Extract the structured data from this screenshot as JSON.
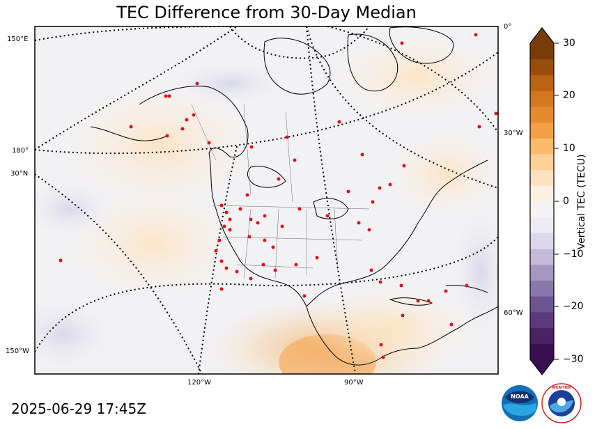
{
  "title": "TEC Difference from 30-Day Median",
  "timestamp": "2025-06-29 17:45Z",
  "colorbar": {
    "label": "Vertical TEC (TECU)",
    "ticks": [
      "30",
      "20",
      "10",
      "0",
      "−10",
      "−20",
      "−30"
    ],
    "colors_low_to_high": [
      "#3b0f50",
      "#4a2364",
      "#5a3a7a",
      "#6b5591",
      "#8877aa",
      "#a597c2",
      "#c2bad8",
      "#dcd8ea",
      "#eceaf3",
      "#f4f3f2",
      "#fbf0e2",
      "#fde2c0",
      "#fcd097",
      "#f9ba6b",
      "#f2a046",
      "#e58b2c",
      "#d4761d",
      "#bb6213",
      "#9a4e0c",
      "#7a3c06"
    ],
    "range": [
      -30,
      30
    ]
  },
  "graticule_labels": {
    "left": [
      "150°E",
      "180°",
      "30°N",
      "150°W"
    ],
    "right": [
      "0°",
      "30°W",
      "60°W"
    ],
    "bottom": [
      "120°W",
      "90°W"
    ]
  },
  "logos": {
    "noaa": "NOAA",
    "nws": "NATIONAL WEATHER SERVICE"
  }
}
